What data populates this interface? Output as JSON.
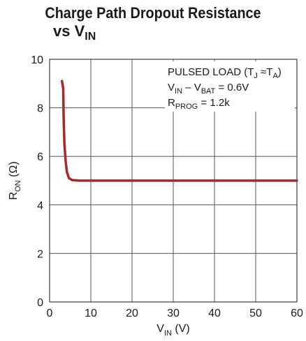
{
  "title": {
    "line1": "Charge Path Dropout Resistance",
    "line2_prefix": "vs V",
    "line2_sub": "IN"
  },
  "chart_data": {
    "type": "line",
    "title": "Charge Path Dropout Resistance vs VIN",
    "xlabel": "VIN (V)",
    "ylabel": "RON (Ω)",
    "xlim": [
      0,
      60
    ],
    "ylim": [
      0,
      10
    ],
    "grid": true,
    "x_ticks": [
      "0",
      "10",
      "20",
      "30",
      "40",
      "50",
      "60"
    ],
    "y_ticks": [
      "0",
      "2",
      "4",
      "6",
      "8",
      "10"
    ],
    "series": [
      {
        "color": "#a52a2a",
        "x": [
          3.0,
          3.3,
          3.4,
          3.6,
          3.9,
          4.2,
          4.7,
          5.5,
          7.0,
          10,
          20,
          30,
          40,
          50,
          60
        ],
        "y": [
          9.1,
          8.8,
          7.6,
          6.5,
          5.8,
          5.35,
          5.1,
          5.02,
          5.0,
          5.0,
          5.0,
          5.0,
          5.0,
          5.0,
          5.0
        ]
      }
    ],
    "annotations": [
      {
        "label": "PULSED LOAD (TJ ≈TA)"
      },
      {
        "label": "VIN – VBAT = 0.6V"
      },
      {
        "label": "RPROG = 1.2k"
      }
    ]
  },
  "axis_labels": {
    "x_main": "V",
    "x_sub": "IN",
    "x_unit": " (V)",
    "y_main": "R",
    "y_sub": "ON",
    "y_unit": " (Ω)"
  },
  "annotation_text": {
    "a1_main": "PULSED LOAD (T",
    "a1_s1": "J",
    "a1_mid": " ≈T",
    "a1_s2": "A",
    "a1_end": ")",
    "a2_main": "V",
    "a2_s1": "IN",
    "a2_mid": " – V",
    "a2_s2": "BAT",
    "a2_end": " = 0.6V",
    "a3_main": "R",
    "a3_s1": "PROG",
    "a3_end": " = 1.2k"
  }
}
